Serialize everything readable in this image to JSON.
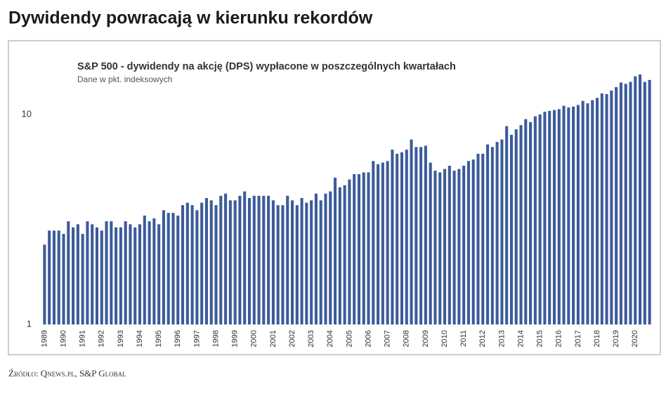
{
  "page_title": "Dywidendy powracają w kierunku rekordów",
  "source": "Źródło: Qnews.pl, S&P Global",
  "chart_data": {
    "type": "bar",
    "title": "S&P 500 - dywidendy na akcję (DPS) wypłacone w poszczególnych kwartałach",
    "subtitle": "Dane w pkt. indeksowych",
    "categories": [
      "1989",
      null,
      null,
      null,
      "1990",
      null,
      null,
      null,
      "1991",
      null,
      null,
      null,
      "1992",
      null,
      null,
      null,
      "1993",
      null,
      null,
      null,
      "1994",
      null,
      null,
      null,
      "1995",
      null,
      null,
      null,
      "1996",
      null,
      null,
      null,
      "1997",
      null,
      null,
      null,
      "1998",
      null,
      null,
      null,
      "1999",
      null,
      null,
      null,
      "2000",
      null,
      null,
      null,
      "2001",
      null,
      null,
      null,
      "2002",
      null,
      null,
      null,
      "2003",
      null,
      null,
      null,
      "2004",
      null,
      null,
      null,
      "2005",
      null,
      null,
      null,
      "2006",
      null,
      null,
      null,
      "2007",
      null,
      null,
      null,
      "2008",
      null,
      null,
      null,
      "2009",
      null,
      null,
      null,
      "2010",
      null,
      null,
      null,
      "2011",
      null,
      null,
      null,
      "2012",
      null,
      null,
      null,
      "2013",
      null,
      null,
      null,
      "2014",
      null,
      null,
      null,
      "2015",
      null,
      null,
      null,
      "2016",
      null,
      null,
      null,
      "2017",
      null,
      null,
      null,
      "2018",
      null,
      null,
      null,
      "2019",
      null,
      null,
      null,
      "2020",
      null,
      null,
      null
    ],
    "values": [
      2.4,
      2.8,
      2.8,
      2.8,
      2.7,
      3.1,
      2.9,
      3.0,
      2.7,
      3.1,
      3.0,
      2.9,
      2.8,
      3.1,
      3.1,
      2.9,
      2.9,
      3.1,
      3.0,
      2.9,
      3.0,
      3.3,
      3.1,
      3.2,
      3.0,
      3.5,
      3.4,
      3.4,
      3.3,
      3.7,
      3.8,
      3.7,
      3.5,
      3.8,
      4.0,
      3.9,
      3.7,
      4.1,
      4.2,
      3.9,
      3.9,
      4.1,
      4.3,
      4.0,
      4.1,
      4.1,
      4.1,
      4.1,
      3.9,
      3.7,
      3.7,
      4.1,
      3.9,
      3.7,
      4.0,
      3.8,
      3.9,
      4.2,
      3.9,
      4.2,
      4.3,
      5.0,
      4.5,
      4.6,
      4.9,
      5.2,
      5.2,
      5.3,
      5.3,
      6.0,
      5.8,
      5.9,
      6.0,
      6.8,
      6.5,
      6.6,
      6.8,
      7.6,
      7.0,
      7.0,
      7.1,
      5.9,
      5.4,
      5.3,
      5.5,
      5.7,
      5.4,
      5.5,
      5.7,
      6.0,
      6.1,
      6.5,
      6.5,
      7.2,
      7.0,
      7.4,
      7.6,
      8.8,
      8.0,
      8.5,
      8.9,
      9.5,
      9.2,
      9.8,
      10.0,
      10.3,
      10.4,
      10.5,
      10.6,
      11.0,
      10.8,
      10.9,
      11.1,
      11.6,
      11.3,
      11.7,
      12.0,
      12.6,
      12.5,
      13.0,
      13.5,
      14.2,
      14.0,
      14.3,
      15.2,
      15.5,
      14.3,
      14.6
    ],
    "color": "#3b5b9a",
    "log_scale": true,
    "ylim": [
      1,
      20
    ],
    "yticks": [
      1,
      10
    ],
    "grid": false
  }
}
